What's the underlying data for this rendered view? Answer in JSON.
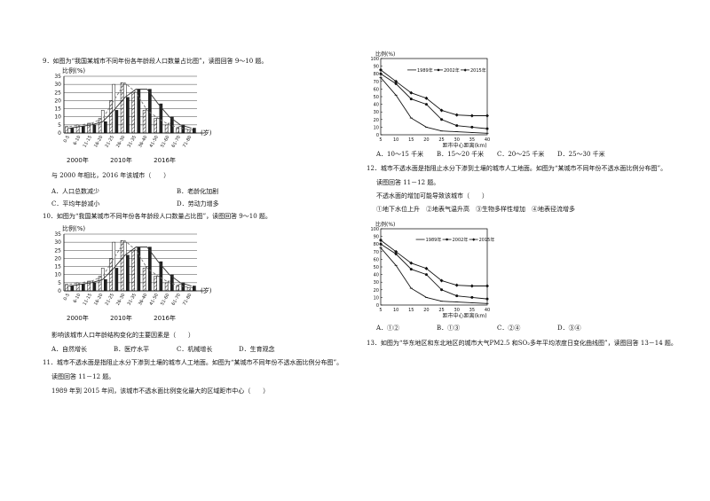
{
  "q9": {
    "stem": "9．如图为“我国某城市不同年份各年龄段人口数量占比图”，读图回答 9～10 题。",
    "question": "与 2000 年相比，2016 年该城市（　　）",
    "options": [
      "A．人口总数减少",
      "B．老龄化加剧",
      "C．平均年龄减小",
      "D．劳动力增多"
    ]
  },
  "q10": {
    "stem": "10．如图为“我国某城市不同年份各年龄段人口数量占比图”，读图回答 9～10 题。",
    "question": "影响该城市人口年龄结构变化的主要因素是（　　）",
    "options": [
      "A．自然增长",
      "B．医疗水平",
      "C．机械增长",
      "D．生育观念"
    ]
  },
  "q11": {
    "stem": "11．城市不透水面是指阻止水分下渗到土壤的城市人工地面。如图为“某城市不同年份不透水面比例分布图”。",
    "read": "读图回答 11－12 题。",
    "question": "1989 年到 2015 年间，该城市不透水面比例变化最大的区域距市中心（　　）",
    "options": [
      "A．10～15 千米",
      "B．15～20 千米",
      "C．20～25 千米",
      "D．25～30 千米"
    ]
  },
  "q12": {
    "stem": "12．城市不透水面是指阻止水分下渗到土壤的城市人工地面。如图为“某城市不同年份不透水面比例分布图”。",
    "read": "读图回答 11－12 题。",
    "question": "不透水面的增加可能导致该城市（　　）",
    "items": "①地下水位上升　②地表气温升高　③生物多样性增加　④地表径流增多",
    "options": [
      "A．①②",
      "B．①③",
      "C．②④",
      "D．③④"
    ]
  },
  "q13": {
    "stem": "13．如图为“华东地区和东北地区的城市大气PM2.5 和SO₂多年平均浓度日变化曲线图”，读图回答 13－14 题。"
  },
  "chart_data": [
    {
      "type": "bar",
      "ylabel": "比例(%)",
      "xlabel": "(岁)",
      "ylim": [
        0,
        35
      ],
      "yticks": [
        0,
        5,
        10,
        15,
        20,
        25,
        30,
        35
      ],
      "categories": [
        "0-5",
        "6-10",
        "11-15",
        "16-20",
        "21-25",
        "26-30",
        "31-35",
        "36-40",
        "41-50",
        "51-60",
        "61-70",
        "71-80"
      ],
      "series": [
        {
          "name": "2000年",
          "values": [
            4,
            5,
            6,
            9,
            20,
            31,
            25,
            14,
            9,
            5,
            3,
            2
          ]
        },
        {
          "name": "2010年",
          "values": [
            3,
            4,
            6,
            14,
            30,
            30,
            25,
            15,
            9,
            6,
            4,
            2
          ]
        },
        {
          "name": "2016年",
          "values": [
            3,
            4,
            5,
            7,
            14,
            22,
            27,
            27,
            18,
            10,
            5,
            3
          ]
        }
      ]
    },
    {
      "type": "bar",
      "ylabel": "比例(%)",
      "xlabel": "(岁)",
      "ylim": [
        0,
        35
      ],
      "yticks": [
        0,
        5,
        10,
        15,
        20,
        25,
        30,
        35
      ],
      "categories": [
        "0-5",
        "6-10",
        "11-15",
        "16-20",
        "21-25",
        "26-30",
        "31-35",
        "36-40",
        "41-50",
        "51-60",
        "61-70",
        "71-80"
      ],
      "series": [
        {
          "name": "2000年",
          "values": [
            4,
            5,
            6,
            9,
            20,
            31,
            25,
            14,
            9,
            5,
            3,
            2
          ]
        },
        {
          "name": "2010年",
          "values": [
            3,
            4,
            6,
            14,
            30,
            30,
            25,
            15,
            9,
            6,
            4,
            2
          ]
        },
        {
          "name": "2016年",
          "values": [
            3,
            4,
            5,
            7,
            14,
            22,
            27,
            27,
            18,
            10,
            5,
            3
          ]
        }
      ]
    },
    {
      "type": "line",
      "ylabel": "比例(%)",
      "xlabel": "距市中心距离(km)",
      "x": [
        5,
        10,
        15,
        20,
        25,
        30,
        35,
        40
      ],
      "xlim": [
        5,
        40
      ],
      "ylim": [
        0,
        100
      ],
      "yticks": [
        0,
        10,
        20,
        30,
        40,
        50,
        60,
        70,
        80,
        90,
        100
      ],
      "series": [
        {
          "name": "1989年",
          "values": [
            75,
            52,
            22,
            10,
            5,
            4,
            3,
            2
          ]
        },
        {
          "name": "2002年",
          "values": [
            80,
            67,
            47,
            40,
            20,
            12,
            10,
            8
          ]
        },
        {
          "name": "2015年",
          "values": [
            85,
            70,
            55,
            48,
            32,
            26,
            25,
            25
          ]
        }
      ]
    },
    {
      "type": "line",
      "ylabel": "比例(%)",
      "xlabel": "距市中心距离(km)",
      "x": [
        5,
        10,
        15,
        20,
        25,
        30,
        35,
        40
      ],
      "xlim": [
        5,
        40
      ],
      "ylim": [
        0,
        100
      ],
      "yticks": [
        0,
        10,
        20,
        30,
        40,
        50,
        60,
        70,
        80,
        90,
        100
      ],
      "series": [
        {
          "name": "1989年",
          "values": [
            75,
            52,
            22,
            10,
            5,
            4,
            3,
            2
          ]
        },
        {
          "name": "2002年",
          "values": [
            80,
            67,
            47,
            40,
            20,
            12,
            10,
            8
          ]
        },
        {
          "name": "2015年",
          "values": [
            85,
            70,
            55,
            48,
            32,
            26,
            25,
            25
          ]
        }
      ]
    }
  ]
}
